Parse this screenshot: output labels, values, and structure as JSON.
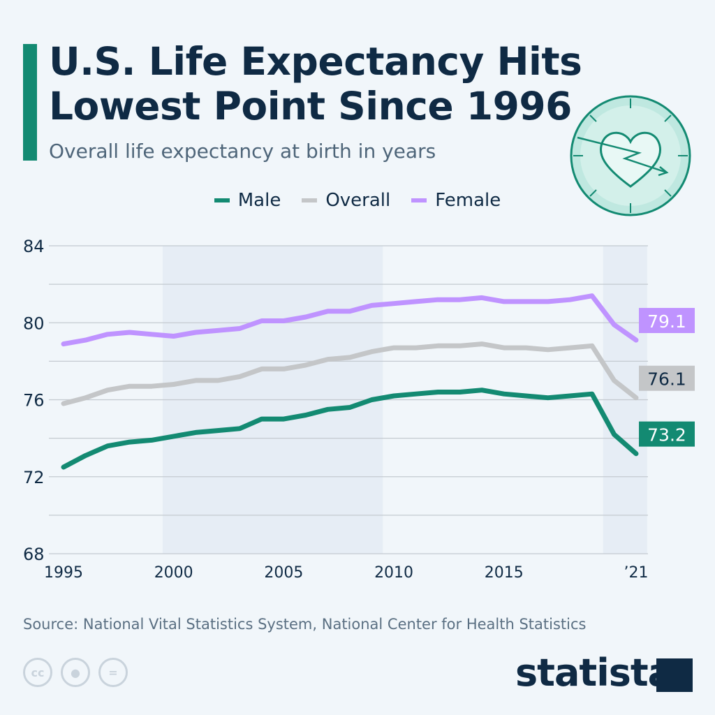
{
  "header": {
    "title_line1": "U.S. Life Expectancy Hits",
    "title_line2": "Lowest Point Since 1996",
    "subtitle": "Overall life expectancy at birth in years",
    "icon": "heart-clock-arrow-icon"
  },
  "footer": {
    "source": "Source: National Vital Statistics System, National Center for Health Statistics",
    "license_icons": [
      "cc-icon",
      "attribution-icon",
      "no-derivatives-icon"
    ],
    "cc_label": "cc",
    "nd_label": "=",
    "brand": "statista"
  },
  "chart_data": {
    "type": "line",
    "title": "U.S. Life Expectancy Hits Lowest Point Since 1996",
    "subtitle": "Overall life expectancy at birth in years",
    "xlabel": "",
    "ylabel": "",
    "x": [
      1995,
      1996,
      1997,
      1998,
      1999,
      2000,
      2001,
      2002,
      2003,
      2004,
      2005,
      2006,
      2007,
      2008,
      2009,
      2010,
      2011,
      2012,
      2013,
      2014,
      2015,
      2016,
      2017,
      2018,
      2019,
      2020,
      2021
    ],
    "xlim": [
      1995,
      2021
    ],
    "ylim": [
      68,
      84
    ],
    "y_ticks": [
      "68",
      "72",
      "76",
      "80",
      "84"
    ],
    "y_tick_values": [
      68,
      72,
      76,
      80,
      84
    ],
    "x_ticks": [
      "1995",
      "2000",
      "2005",
      "2010",
      "2015",
      "’21"
    ],
    "x_tick_values": [
      1995,
      2000,
      2005,
      2010,
      2015,
      2021
    ],
    "grid": true,
    "gridline_step": 2,
    "shaded_bands": [
      [
        1999.5,
        2009.5
      ],
      [
        2019.5,
        2021.5
      ]
    ],
    "legend_position": "top-center",
    "series": [
      {
        "name": "Male",
        "color": "#138a72",
        "end_label": "73.2",
        "label_text_color": "#ffffff",
        "values": [
          72.5,
          73.1,
          73.6,
          73.8,
          73.9,
          74.1,
          74.3,
          74.4,
          74.5,
          75.0,
          75.0,
          75.2,
          75.5,
          75.6,
          76.0,
          76.2,
          76.3,
          76.4,
          76.4,
          76.5,
          76.3,
          76.2,
          76.1,
          76.2,
          76.3,
          74.2,
          73.2
        ]
      },
      {
        "name": "Overall",
        "color": "#c4c6c8",
        "end_label": "76.1",
        "label_text_color": "#0f2a44",
        "values": [
          75.8,
          76.1,
          76.5,
          76.7,
          76.7,
          76.8,
          77.0,
          77.0,
          77.2,
          77.6,
          77.6,
          77.8,
          78.1,
          78.2,
          78.5,
          78.7,
          78.7,
          78.8,
          78.8,
          78.9,
          78.7,
          78.7,
          78.6,
          78.7,
          78.8,
          77.0,
          76.1
        ]
      },
      {
        "name": "Female",
        "color": "#bf93ff",
        "end_label": "79.1",
        "label_text_color": "#ffffff",
        "values": [
          78.9,
          79.1,
          79.4,
          79.5,
          79.4,
          79.3,
          79.5,
          79.6,
          79.7,
          80.1,
          80.1,
          80.3,
          80.6,
          80.6,
          80.9,
          81.0,
          81.1,
          81.2,
          81.2,
          81.3,
          81.1,
          81.1,
          81.1,
          81.2,
          81.4,
          79.9,
          79.1
        ]
      }
    ]
  }
}
